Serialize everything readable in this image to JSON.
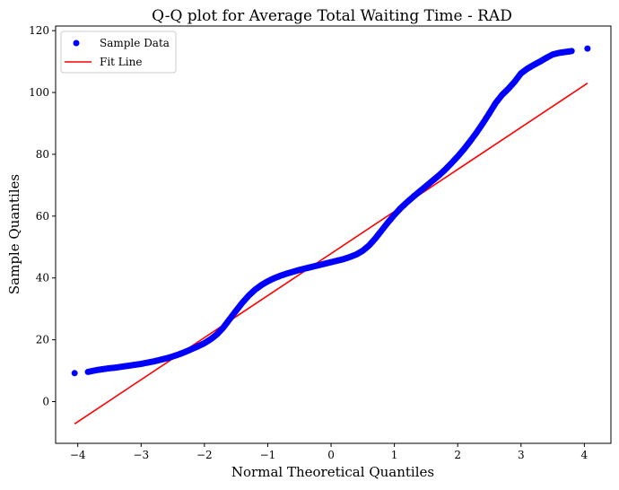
{
  "chart_data": {
    "type": "scatter",
    "title": "Q-Q plot for Average Total Waiting Time - RAD",
    "xlabel": "Normal Theoretical Quantiles",
    "ylabel": "Sample Quantiles",
    "xlim": [
      -4.35,
      4.42
    ],
    "ylim": [
      -13.5,
      121.5
    ],
    "xticks": [
      -4,
      -3,
      -2,
      -1,
      0,
      1,
      2,
      3,
      4
    ],
    "xtick_labels": [
      "−4",
      "−3",
      "−2",
      "−1",
      "0",
      "1",
      "2",
      "3",
      "4"
    ],
    "yticks": [
      0,
      20,
      40,
      60,
      80,
      100,
      120
    ],
    "ytick_labels": [
      "0",
      "20",
      "40",
      "60",
      "80",
      "100",
      "120"
    ],
    "grid": false,
    "legend": {
      "position": "top-left",
      "entries": [
        "Sample Data",
        "Fit Line"
      ]
    },
    "series": [
      {
        "name": "Sample Data",
        "kind": "scatter",
        "color": "#0000ff",
        "points": [
          [
            -4.05,
            9.2
          ],
          [
            -3.84,
            9.6
          ],
          [
            -3.7,
            10.2
          ],
          [
            -3.6,
            10.5
          ],
          [
            -3.5,
            10.8
          ],
          [
            -3.4,
            11.0
          ],
          [
            -3.3,
            11.3
          ],
          [
            -3.2,
            11.6
          ],
          [
            -3.1,
            11.9
          ],
          [
            -3.0,
            12.2
          ],
          [
            -2.9,
            12.6
          ],
          [
            -2.8,
            13.0
          ],
          [
            -2.7,
            13.5
          ],
          [
            -2.6,
            14.0
          ],
          [
            -2.5,
            14.6
          ],
          [
            -2.4,
            15.3
          ],
          [
            -2.3,
            16.1
          ],
          [
            -2.2,
            17.0
          ],
          [
            -2.1,
            17.9
          ],
          [
            -2.0,
            18.9
          ],
          [
            -1.9,
            20.2
          ],
          [
            -1.8,
            21.8
          ],
          [
            -1.7,
            24.0
          ],
          [
            -1.6,
            26.7
          ],
          [
            -1.5,
            29.4
          ],
          [
            -1.4,
            32.0
          ],
          [
            -1.3,
            34.3
          ],
          [
            -1.2,
            36.2
          ],
          [
            -1.1,
            37.7
          ],
          [
            -1.0,
            38.9
          ],
          [
            -0.9,
            39.9
          ],
          [
            -0.8,
            40.7
          ],
          [
            -0.7,
            41.4
          ],
          [
            -0.6,
            42.0
          ],
          [
            -0.5,
            42.6
          ],
          [
            -0.4,
            43.1
          ],
          [
            -0.3,
            43.6
          ],
          [
            -0.2,
            44.1
          ],
          [
            -0.1,
            44.6
          ],
          [
            0.0,
            45.1
          ],
          [
            0.1,
            45.6
          ],
          [
            0.2,
            46.1
          ],
          [
            0.3,
            46.8
          ],
          [
            0.4,
            47.6
          ],
          [
            0.5,
            48.8
          ],
          [
            0.6,
            50.5
          ],
          [
            0.7,
            52.8
          ],
          [
            0.8,
            55.4
          ],
          [
            0.9,
            58.0
          ],
          [
            1.0,
            60.4
          ],
          [
            1.1,
            62.6
          ],
          [
            1.2,
            64.5
          ],
          [
            1.3,
            66.3
          ],
          [
            1.4,
            68.0
          ],
          [
            1.5,
            69.7
          ],
          [
            1.6,
            71.4
          ],
          [
            1.7,
            73.1
          ],
          [
            1.8,
            75.0
          ],
          [
            1.9,
            77.1
          ],
          [
            2.0,
            79.3
          ],
          [
            2.1,
            81.7
          ],
          [
            2.2,
            84.3
          ],
          [
            2.3,
            87.1
          ],
          [
            2.4,
            90.1
          ],
          [
            2.5,
            93.3
          ],
          [
            2.6,
            96.6
          ],
          [
            2.7,
            99.2
          ],
          [
            2.8,
            101.2
          ],
          [
            2.9,
            103.5
          ],
          [
            3.0,
            106.2
          ],
          [
            3.1,
            107.7
          ],
          [
            3.2,
            108.9
          ],
          [
            3.3,
            110.0
          ],
          [
            3.4,
            111.2
          ],
          [
            3.5,
            112.3
          ],
          [
            3.6,
            112.8
          ],
          [
            3.7,
            113.1
          ],
          [
            3.8,
            113.4
          ],
          [
            4.05,
            114.2
          ]
        ]
      },
      {
        "name": "Fit Line",
        "kind": "line",
        "color": "#ff0000",
        "points": [
          [
            -4.05,
            -7.2
          ],
          [
            4.05,
            103.0
          ]
        ]
      }
    ]
  }
}
